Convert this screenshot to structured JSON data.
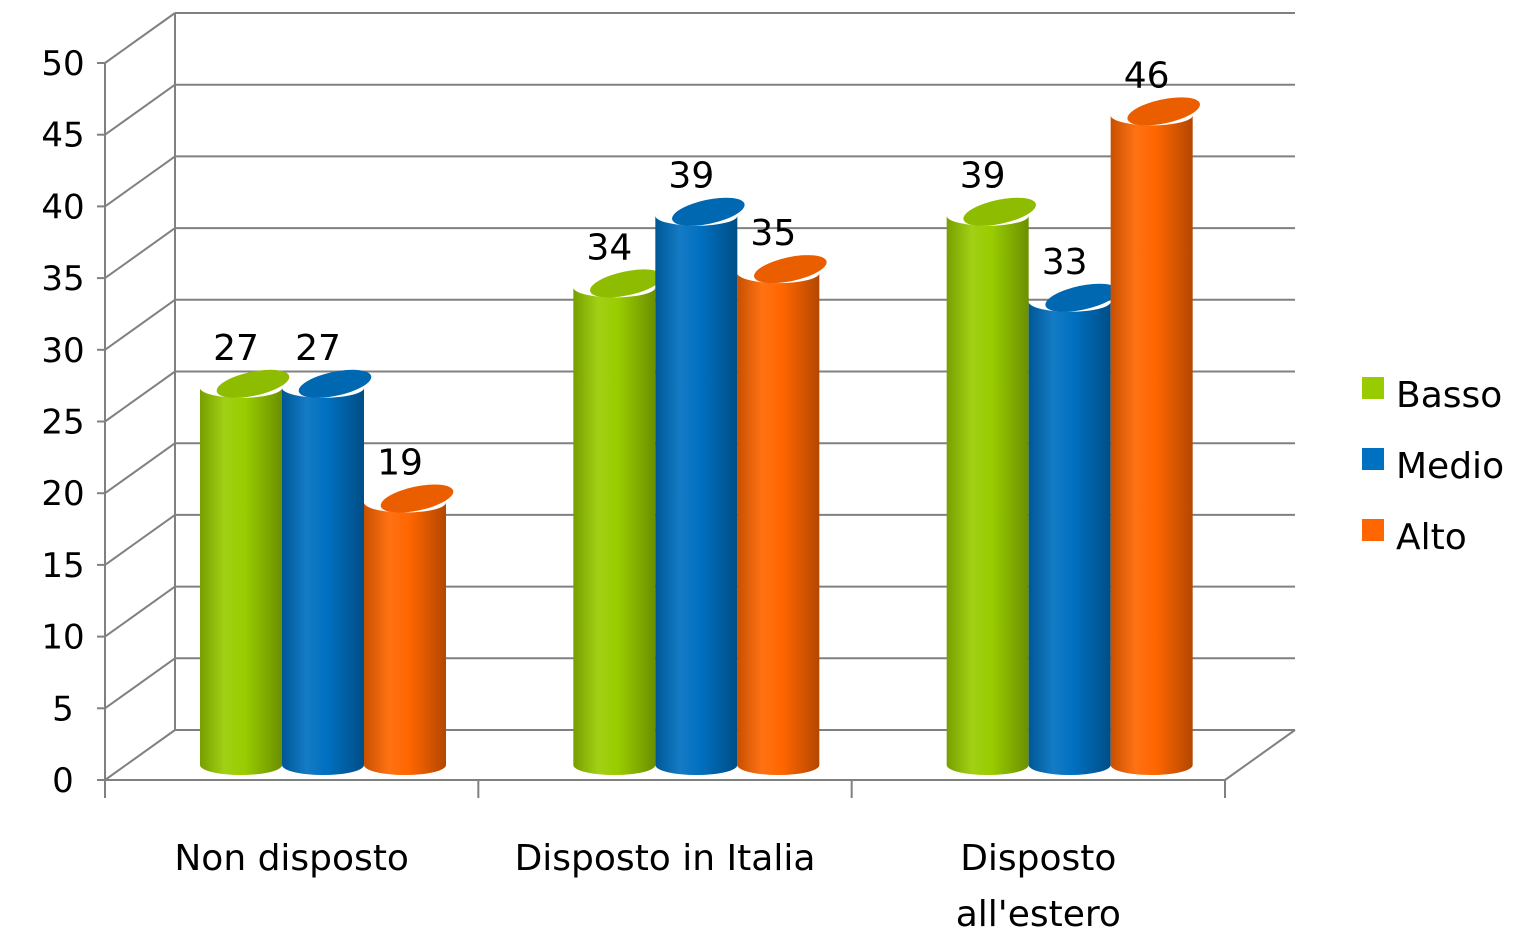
{
  "chart_data": {
    "type": "bar",
    "title": "",
    "xlabel": "",
    "ylabel": "",
    "categories": [
      [
        "Non disposto"
      ],
      [
        "Disposto in Italia"
      ],
      [
        "Disposto",
        "all'estero"
      ]
    ],
    "series": [
      {
        "name": "Basso",
        "color": "#99cc00",
        "values": [
          27,
          34,
          39
        ]
      },
      {
        "name": "Medio",
        "color": "#0070c0",
        "values": [
          27,
          39,
          33
        ]
      },
      {
        "name": "Alto",
        "color": "#ff6600",
        "values": [
          19,
          35,
          46
        ]
      }
    ],
    "ylim": [
      0,
      50
    ],
    "yticks": [
      "0",
      "5",
      "10",
      "15",
      "20",
      "25",
      "30",
      "35",
      "40",
      "45",
      "50"
    ],
    "grid": true,
    "legend_position": "right",
    "style": "3d-cylinder"
  }
}
